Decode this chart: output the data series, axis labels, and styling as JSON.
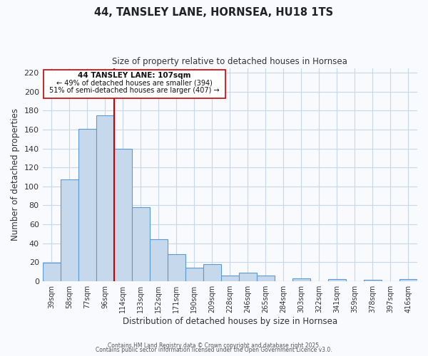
{
  "title": "44, TANSLEY LANE, HORNSEA, HU18 1TS",
  "subtitle": "Size of property relative to detached houses in Hornsea",
  "xlabel": "Distribution of detached houses by size in Hornsea",
  "ylabel": "Number of detached properties",
  "bar_labels": [
    "39sqm",
    "58sqm",
    "77sqm",
    "96sqm",
    "114sqm",
    "133sqm",
    "152sqm",
    "171sqm",
    "190sqm",
    "209sqm",
    "228sqm",
    "246sqm",
    "265sqm",
    "284sqm",
    "303sqm",
    "322sqm",
    "341sqm",
    "359sqm",
    "378sqm",
    "397sqm",
    "416sqm"
  ],
  "bar_heights": [
    19,
    107,
    161,
    175,
    140,
    78,
    44,
    28,
    14,
    18,
    6,
    9,
    6,
    0,
    3,
    0,
    2,
    0,
    1,
    0,
    2
  ],
  "bar_color": "#c6d9ec",
  "bar_edge_color": "#5b9bd5",
  "vline_x_index": 3.5,
  "vline_color": "#cc0000",
  "annotation_title": "44 TANSLEY LANE: 107sqm",
  "annotation_line1": "← 49% of detached houses are smaller (394)",
  "annotation_line2": "51% of semi-detached houses are larger (407) →",
  "ylim": [
    0,
    225
  ],
  "yticks": [
    0,
    20,
    40,
    60,
    80,
    100,
    120,
    140,
    160,
    180,
    200,
    220
  ],
  "footer1": "Contains HM Land Registry data © Crown copyright and database right 2025.",
  "footer2": "Contains public sector information licensed under the Open Government Licence v3.0.",
  "bg_color": "#f8fafd",
  "grid_color": "#c8d8e8"
}
